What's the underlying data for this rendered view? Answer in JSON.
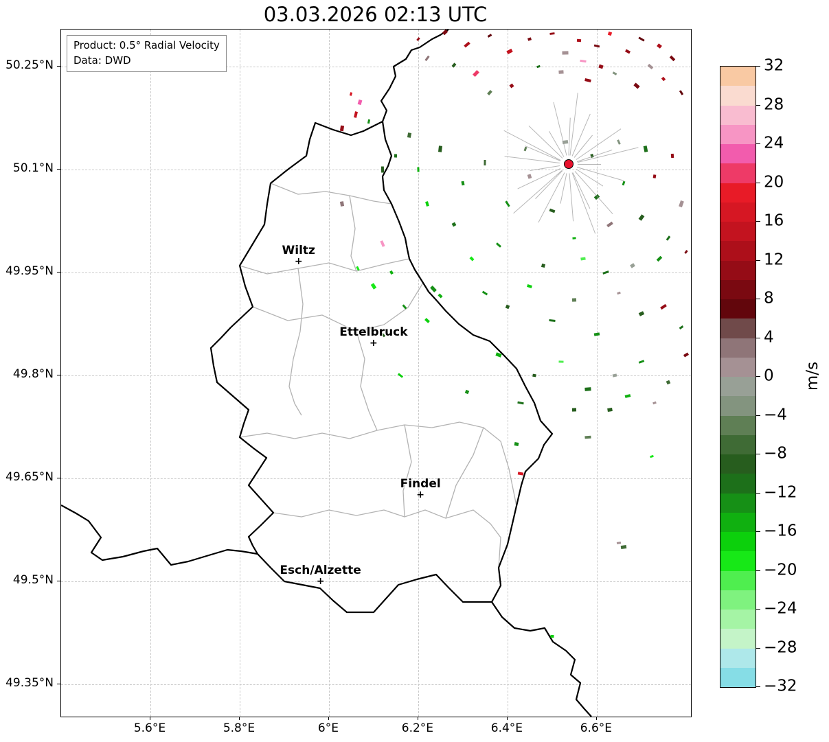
{
  "title": "03.03.2026 02:13 UTC",
  "info_box": {
    "product": "Product: 0.5° Radial Velocity",
    "source": "Data: DWD"
  },
  "axes": {
    "x_ticks": [
      {
        "value": 5.6,
        "label": "5.6°E"
      },
      {
        "value": 5.8,
        "label": "5.8°E"
      },
      {
        "value": 6.0,
        "label": "6°E"
      },
      {
        "value": 6.2,
        "label": "6.2°E"
      },
      {
        "value": 6.4,
        "label": "6.4°E"
      },
      {
        "value": 6.6,
        "label": "6.6°E"
      }
    ],
    "y_ticks": [
      {
        "value": 50.25,
        "label": "50.25°N"
      },
      {
        "value": 50.1,
        "label": "50.1°N"
      },
      {
        "value": 49.95,
        "label": "49.95°N"
      },
      {
        "value": 49.8,
        "label": "49.8°N"
      },
      {
        "value": 49.65,
        "label": "49.65°N"
      },
      {
        "value": 49.5,
        "label": "49.5°N"
      },
      {
        "value": 49.35,
        "label": "49.35°N"
      }
    ]
  },
  "cities": [
    {
      "name": "Wiltz",
      "lon": 5.932,
      "lat": 49.966
    },
    {
      "name": "Ettelbruck",
      "lon": 6.1,
      "lat": 49.847
    },
    {
      "name": "Findel",
      "lon": 6.205,
      "lat": 49.626
    },
    {
      "name": "Esch/Alzette",
      "lon": 5.981,
      "lat": 49.5
    }
  ],
  "radar": {
    "lon": 6.537,
    "lat": 50.108
  },
  "colorbar": {
    "unit": "m/s",
    "min": -32,
    "max": 32,
    "segment_step": 2,
    "tick_values": [
      32,
      28,
      24,
      20,
      16,
      12,
      8,
      4,
      0,
      -4,
      -8,
      -12,
      -16,
      -20,
      -24,
      -28,
      -32
    ],
    "tick_labels": [
      "32",
      "28",
      "24",
      "20",
      "16",
      "12",
      "8",
      "4",
      "0",
      "−4",
      "−8",
      "−12",
      "−16",
      "−20",
      "−24",
      "−28",
      "−32"
    ],
    "colors_top_to_bottom": [
      "#f9c9a3",
      "#fadbd0",
      "#f9bcd0",
      "#f795c4",
      "#f25cad",
      "#ee3a67",
      "#e81b27",
      "#d61723",
      "#c3131f",
      "#ad0f1a",
      "#950c16",
      "#7a0911",
      "#62060c",
      "#704a4a",
      "#8f7578",
      "#a59194",
      "#98a096",
      "#83947f",
      "#5f7f55",
      "#3f6b35",
      "#275d1e",
      "#1d701a",
      "#169016",
      "#10b010",
      "#0cd00c",
      "#17e817",
      "#4fee4f",
      "#7ff27f",
      "#a5f4a5",
      "#c4f4c8",
      "#aee8ea",
      "#86dde6"
    ]
  },
  "chart_data": {
    "type": "scatter",
    "title": "03.03.2026 02:13 UTC",
    "xlabel": "",
    "ylabel": "",
    "xlim": [
      5.4,
      6.811
    ],
    "ylim": [
      49.303,
      50.304
    ],
    "grid": true,
    "colorbar_label": "m/s",
    "colorbar_range": [
      -32,
      32
    ],
    "echoes_lon_lat_mps": [
      [
        6.2,
        50.29,
        12
      ],
      [
        6.26,
        50.3,
        10
      ],
      [
        6.31,
        50.282,
        14
      ],
      [
        6.36,
        50.295,
        8
      ],
      [
        6.405,
        50.272,
        16
      ],
      [
        6.45,
        50.29,
        10
      ],
      [
        6.5,
        50.298,
        12
      ],
      [
        6.53,
        50.27,
        2
      ],
      [
        6.56,
        50.288,
        14
      ],
      [
        6.6,
        50.28,
        10
      ],
      [
        6.63,
        50.298,
        20
      ],
      [
        6.67,
        50.272,
        12
      ],
      [
        6.7,
        50.29,
        8
      ],
      [
        6.74,
        50.28,
        14
      ],
      [
        6.77,
        50.262,
        10
      ],
      [
        6.47,
        50.25,
        -10
      ],
      [
        6.52,
        50.242,
        2
      ],
      [
        6.58,
        50.23,
        12
      ],
      [
        6.64,
        50.24,
        -2
      ],
      [
        6.69,
        50.222,
        10
      ],
      [
        6.75,
        50.232,
        14
      ],
      [
        6.79,
        50.212,
        8
      ],
      [
        6.33,
        50.24,
        22
      ],
      [
        6.28,
        50.252,
        -8
      ],
      [
        6.22,
        50.262,
        4
      ],
      [
        6.41,
        50.222,
        12
      ],
      [
        6.36,
        50.212,
        -4
      ],
      [
        6.57,
        50.258,
        26
      ],
      [
        6.61,
        50.25,
        12
      ],
      [
        6.72,
        50.25,
        2
      ],
      [
        6.05,
        50.21,
        18
      ],
      [
        6.07,
        50.198,
        24
      ],
      [
        6.06,
        50.18,
        16
      ],
      [
        6.09,
        50.17,
        -12
      ],
      [
        6.03,
        50.16,
        12
      ],
      [
        6.15,
        50.12,
        -10
      ],
      [
        6.2,
        50.1,
        -14
      ],
      [
        6.25,
        50.13,
        -8
      ],
      [
        6.3,
        50.08,
        -12
      ],
      [
        6.35,
        50.11,
        -6
      ],
      [
        6.28,
        50.02,
        -10
      ],
      [
        6.22,
        50.05,
        -16
      ],
      [
        6.4,
        50.05,
        -12
      ],
      [
        6.45,
        50.09,
        2
      ],
      [
        6.5,
        50.04,
        -8
      ],
      [
        6.55,
        50.0,
        -14
      ],
      [
        6.6,
        50.06,
        -10
      ],
      [
        6.63,
        50.02,
        4
      ],
      [
        6.66,
        50.08,
        -12
      ],
      [
        6.7,
        50.03,
        -8
      ],
      [
        6.73,
        50.09,
        12
      ],
      [
        6.76,
        50.0,
        -10
      ],
      [
        6.79,
        50.05,
        2
      ],
      [
        6.32,
        49.97,
        -18
      ],
      [
        6.38,
        49.99,
        -12
      ],
      [
        6.48,
        49.96,
        -8
      ],
      [
        6.57,
        49.97,
        -20
      ],
      [
        6.62,
        49.95,
        -10
      ],
      [
        6.68,
        49.96,
        0
      ],
      [
        6.74,
        49.97,
        -12
      ],
      [
        6.8,
        49.98,
        10
      ],
      [
        6.18,
        50.15,
        -6
      ],
      [
        6.12,
        50.1,
        -8
      ],
      [
        6.44,
        50.13,
        -4
      ],
      [
        6.53,
        50.14,
        0
      ],
      [
        6.59,
        50.12,
        -8
      ],
      [
        6.65,
        50.14,
        -2
      ],
      [
        6.71,
        50.13,
        -10
      ],
      [
        6.77,
        50.12,
        12
      ],
      [
        6.35,
        49.92,
        -12
      ],
      [
        6.4,
        49.9,
        -8
      ],
      [
        6.45,
        49.93,
        -16
      ],
      [
        6.5,
        49.88,
        -10
      ],
      [
        6.55,
        49.91,
        -4
      ],
      [
        6.6,
        49.86,
        -12
      ],
      [
        6.65,
        49.92,
        2
      ],
      [
        6.7,
        49.89,
        -8
      ],
      [
        6.75,
        49.9,
        12
      ],
      [
        6.79,
        49.87,
        -10
      ],
      [
        6.38,
        49.83,
        -14
      ],
      [
        6.46,
        49.8,
        -8
      ],
      [
        6.52,
        49.82,
        -20
      ],
      [
        6.58,
        49.78,
        -10
      ],
      [
        6.64,
        49.8,
        0
      ],
      [
        6.7,
        49.82,
        -12
      ],
      [
        6.76,
        49.79,
        -6
      ],
      [
        6.8,
        49.83,
        10
      ],
      [
        6.43,
        49.76,
        -10
      ],
      [
        6.55,
        49.75,
        -8
      ],
      [
        6.67,
        49.77,
        -14
      ],
      [
        6.73,
        49.76,
        2
      ],
      [
        6.03,
        50.05,
        4
      ],
      [
        6.12,
        49.992,
        26
      ],
      [
        6.065,
        49.956,
        -18
      ],
      [
        6.1,
        49.93,
        -18
      ],
      [
        6.14,
        49.95,
        -14
      ],
      [
        6.17,
        49.9,
        -12
      ],
      [
        6.234,
        49.926,
        -12
      ],
      [
        6.249,
        49.916,
        -14
      ],
      [
        6.16,
        49.8,
        -16
      ],
      [
        6.31,
        49.776,
        -12
      ],
      [
        6.22,
        49.88,
        -16
      ],
      [
        6.12,
        49.86,
        -8
      ],
      [
        6.42,
        49.7,
        -12
      ],
      [
        6.43,
        49.657,
        18
      ],
      [
        6.723,
        49.682,
        -18
      ],
      [
        6.63,
        49.75,
        -8
      ],
      [
        6.58,
        49.71,
        -4
      ],
      [
        6.649,
        49.556,
        2
      ],
      [
        6.66,
        49.55,
        -6
      ],
      [
        6.5,
        49.42,
        -16
      ]
    ]
  }
}
